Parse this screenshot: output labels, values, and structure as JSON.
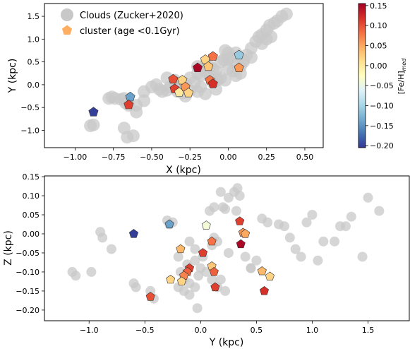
{
  "colors": {
    "cloud": "#c8c8c8",
    "colormap_stops": [
      "#313695",
      "#4575b4",
      "#74add1",
      "#abd9e9",
      "#e0f3f8",
      "#ffffbf",
      "#fee090",
      "#fdae61",
      "#f46d43",
      "#d73027",
      "#a50026"
    ]
  },
  "chart_data": [
    {
      "type": "scatter",
      "xlabel": "X (kpc)",
      "ylabel": "Y (kpc)",
      "xlim": [
        -1.2,
        0.62
      ],
      "ylim": [
        -1.38,
        1.78
      ],
      "xticks": [
        -1.0,
        -0.75,
        -0.5,
        -0.25,
        0.0,
        0.25,
        0.5
      ],
      "xtick_labels": [
        "−1.00",
        "−0.75",
        "−0.50",
        "−0.25",
        "0.00",
        "0.25",
        "0.50"
      ],
      "yticks": [
        -1.0,
        -0.5,
        0.0,
        0.5,
        1.0,
        1.5
      ],
      "ytick_labels": [
        "−1.0",
        "−0.5",
        "0.0",
        "0.5",
        "1.0",
        "1.5"
      ],
      "legend": {
        "placement": "top-left",
        "entries": [
          "Clouds (Zucker+2020)",
          "cluster (age <0.1Gyr)"
        ]
      },
      "series": [
        {
          "name": "Clouds (Zucker+2020)",
          "marker": "circle",
          "points": [
            [
              -0.9,
              -0.9
            ],
            [
              -0.88,
              -0.88
            ],
            [
              -0.78,
              -0.3
            ],
            [
              -0.76,
              -0.27
            ],
            [
              -0.74,
              -0.3
            ],
            [
              -0.7,
              -0.32
            ],
            [
              -0.68,
              -0.3
            ],
            [
              -0.67,
              -0.4
            ],
            [
              -0.65,
              -0.45
            ],
            [
              -0.68,
              -0.95
            ],
            [
              -0.62,
              -1.12
            ],
            [
              -0.66,
              -1.15
            ],
            [
              -0.6,
              -0.45
            ],
            [
              -0.55,
              -0.15
            ],
            [
              -0.5,
              -0.05
            ],
            [
              -0.47,
              0.0
            ],
            [
              -0.45,
              -0.1
            ],
            [
              -0.43,
              -0.15
            ],
            [
              -0.4,
              -0.12
            ],
            [
              -0.38,
              -0.05
            ],
            [
              -0.35,
              0.05
            ],
            [
              -0.33,
              -0.15
            ],
            [
              -0.3,
              0.05
            ],
            [
              -0.28,
              0.02
            ],
            [
              -0.25,
              0.15
            ],
            [
              -0.22,
              0.05
            ],
            [
              -0.2,
              0.25
            ],
            [
              -0.18,
              0.2
            ],
            [
              -0.15,
              0.3
            ],
            [
              -0.12,
              0.2
            ],
            [
              -0.1,
              0.35
            ],
            [
              -0.08,
              0.3
            ],
            [
              -0.05,
              0.5
            ],
            [
              -0.03,
              0.55
            ],
            [
              0.0,
              0.55
            ],
            [
              0.02,
              0.6
            ],
            [
              0.0,
              0.7
            ],
            [
              -0.02,
              0.75
            ],
            [
              0.05,
              0.45
            ],
            [
              0.08,
              0.4
            ],
            [
              0.1,
              0.5
            ],
            [
              0.12,
              0.65
            ],
            [
              0.15,
              0.8
            ],
            [
              0.18,
              0.95
            ],
            [
              0.2,
              1.05
            ],
            [
              0.22,
              1.1
            ],
            [
              0.25,
              1.2
            ],
            [
              0.27,
              1.3
            ],
            [
              0.3,
              1.35
            ],
            [
              0.32,
              1.4
            ],
            [
              0.35,
              1.5
            ],
            [
              0.38,
              1.55
            ],
            [
              0.28,
              1.05
            ],
            [
              0.25,
              1.0
            ],
            [
              0.22,
              0.9
            ],
            [
              -0.05,
              0.15
            ],
            [
              -0.02,
              0.1
            ],
            [
              -0.1,
              0.05
            ],
            [
              -0.18,
              -0.05
            ],
            [
              -0.25,
              -0.12
            ],
            [
              -0.3,
              -0.18
            ],
            [
              -0.35,
              0.1
            ],
            [
              -0.4,
              0.15
            ],
            [
              0.05,
              0.2
            ],
            [
              0.08,
              0.25
            ],
            [
              0.03,
              0.3
            ],
            [
              -0.15,
              0.45
            ],
            [
              -0.2,
              0.4
            ],
            [
              -0.12,
              0.4
            ],
            [
              0.1,
              0.55
            ],
            [
              0.15,
              0.6
            ],
            [
              0.05,
              0.7
            ],
            [
              0.0,
              0.35
            ],
            [
              -0.07,
              0.1
            ],
            [
              -0.28,
              -0.25
            ],
            [
              -0.2,
              -0.15
            ],
            [
              -0.15,
              -0.2
            ],
            [
              -0.08,
              -0.1
            ],
            [
              -0.6,
              -0.6
            ],
            [
              -0.55,
              -0.35
            ]
          ]
        },
        {
          "name": "cluster (age <0.1Gyr)",
          "marker": "pentagon",
          "points": [
            {
              "x": -0.88,
              "y": -0.6,
              "feh": -0.2
            },
            {
              "x": -0.64,
              "y": -0.27,
              "feh": -0.14
            },
            {
              "x": -0.65,
              "y": -0.44,
              "feh": 0.11
            },
            {
              "x": -0.36,
              "y": 0.12,
              "feh": 0.1
            },
            {
              "x": -0.35,
              "y": -0.09,
              "feh": 0.11
            },
            {
              "x": -0.3,
              "y": 0.1,
              "feh": 0.02
            },
            {
              "x": -0.32,
              "y": -0.17,
              "feh": 0.0
            },
            {
              "x": -0.28,
              "y": -0.05,
              "feh": 0.06
            },
            {
              "x": -0.26,
              "y": -0.18,
              "feh": 0.02
            },
            {
              "x": -0.2,
              "y": 0.37,
              "feh": 0.15
            },
            {
              "x": -0.15,
              "y": 0.55,
              "feh": 0.02
            },
            {
              "x": -0.13,
              "y": 0.4,
              "feh": 0.03
            },
            {
              "x": -0.12,
              "y": 0.1,
              "feh": 0.08
            },
            {
              "x": -0.1,
              "y": 0.02,
              "feh": 0.12
            },
            {
              "x": -0.1,
              "y": 0.62,
              "feh": 0.08
            },
            {
              "x": 0.07,
              "y": 0.65,
              "feh": -0.11
            },
            {
              "x": 0.07,
              "y": 0.37,
              "feh": 0.06
            }
          ]
        }
      ]
    },
    {
      "type": "scatter",
      "xlabel": "Y (kpc)",
      "ylabel": "Z (kpc)",
      "xlim": [
        -1.4,
        1.87
      ],
      "ylim": [
        -0.228,
        0.152
      ],
      "xticks": [
        -1.0,
        -0.5,
        0.0,
        0.5,
        1.0,
        1.5
      ],
      "xtick_labels": [
        "−1.0",
        "−0.5",
        "0.0",
        "0.5",
        "1.0",
        "1.5"
      ],
      "yticks": [
        -0.2,
        -0.15,
        -0.1,
        -0.05,
        0.0,
        0.05,
        0.1,
        0.15
      ],
      "ytick_labels": [
        "−0.20",
        "−0.15",
        "−0.10",
        "−0.05",
        "0.00",
        "0.05",
        "0.10",
        "0.15"
      ],
      "series": [
        {
          "name": "Clouds (Zucker+2020)",
          "marker": "circle",
          "points": [
            [
              -1.15,
              -0.1
            ],
            [
              -1.12,
              -0.11
            ],
            [
              -0.98,
              -0.1
            ],
            [
              -0.9,
              0.005
            ],
            [
              -0.88,
              -0.01
            ],
            [
              -0.8,
              -0.04
            ],
            [
              -0.6,
              -0.13
            ],
            [
              -0.58,
              -0.14
            ],
            [
              -0.45,
              -0.15
            ],
            [
              -0.42,
              -0.17
            ],
            [
              -0.3,
              0.035
            ],
            [
              -0.28,
              0.025
            ],
            [
              -0.25,
              0.03
            ],
            [
              -0.2,
              -0.14
            ],
            [
              -0.18,
              -0.1
            ],
            [
              -0.15,
              -0.12
            ],
            [
              -0.12,
              -0.08
            ],
            [
              -0.1,
              -0.13
            ],
            [
              -0.15,
              -0.15
            ],
            [
              -0.1,
              -0.16
            ],
            [
              -0.05,
              -0.14
            ],
            [
              -0.02,
              -0.11
            ],
            [
              0.0,
              -0.09
            ],
            [
              0.02,
              -0.06
            ],
            [
              0.05,
              -0.1
            ],
            [
              -0.05,
              -0.07
            ],
            [
              0.1,
              -0.03
            ],
            [
              0.12,
              -0.01
            ],
            [
              0.15,
              -0.02
            ],
            [
              0.08,
              0.06
            ],
            [
              0.12,
              0.07
            ],
            [
              0.18,
              0.11
            ],
            [
              0.2,
              0.07
            ],
            [
              0.25,
              0.095
            ],
            [
              0.3,
              0.11
            ],
            [
              0.33,
              0.12
            ],
            [
              0.35,
              0.1
            ],
            [
              0.32,
              0.06
            ],
            [
              0.22,
              0.065
            ],
            [
              0.18,
              -0.12
            ],
            [
              0.15,
              -0.14
            ],
            [
              0.22,
              -0.15
            ],
            [
              -0.1,
              -0.02
            ],
            [
              -0.05,
              -0.04
            ],
            [
              0.1,
              -0.12
            ],
            [
              0.4,
              -0.06
            ],
            [
              0.45,
              -0.09
            ],
            [
              0.5,
              -0.07
            ],
            [
              0.55,
              0.04
            ],
            [
              0.6,
              0.03
            ],
            [
              0.7,
              0.025
            ],
            [
              0.75,
              0.02
            ],
            [
              0.8,
              -0.01
            ],
            [
              0.85,
              -0.04
            ],
            [
              0.9,
              -0.06
            ],
            [
              0.95,
              0.03
            ],
            [
              1.0,
              0.05
            ],
            [
              1.05,
              -0.07
            ],
            [
              1.1,
              -0.02
            ],
            [
              1.2,
              -0.02
            ],
            [
              1.25,
              0.02
            ],
            [
              1.3,
              0.02
            ],
            [
              1.35,
              0.045
            ],
            [
              1.45,
              -0.06
            ],
            [
              1.5,
              0.095
            ],
            [
              1.6,
              0.06
            ],
            [
              -0.03,
              -0.195
            ],
            [
              -0.2,
              -0.06
            ],
            [
              0.25,
              -0.05
            ],
            [
              0.45,
              -0.09
            ]
          ]
        },
        {
          "name": "cluster (age <0.1Gyr)",
          "marker": "pentagon",
          "points": [
            {
              "x": -0.6,
              "y": 0.0,
              "feh": -0.2
            },
            {
              "x": -0.28,
              "y": 0.025,
              "feh": -0.14
            },
            {
              "x": 0.05,
              "y": 0.022,
              "feh": -0.04
            },
            {
              "x": -0.18,
              "y": -0.04,
              "feh": 0.04
            },
            {
              "x": -0.27,
              "y": -0.12,
              "feh": 0.02
            },
            {
              "x": -0.1,
              "y": -0.09,
              "feh": 0.11
            },
            {
              "x": -0.12,
              "y": -0.1,
              "feh": 0.09
            },
            {
              "x": -0.15,
              "y": -0.11,
              "feh": 0.07
            },
            {
              "x": -0.17,
              "y": -0.125,
              "feh": 0.02
            },
            {
              "x": -0.45,
              "y": -0.165,
              "feh": 0.1
            },
            {
              "x": 0.02,
              "y": -0.05,
              "feh": 0.11
            },
            {
              "x": 0.1,
              "y": -0.02,
              "feh": 0.08
            },
            {
              "x": 0.1,
              "y": -0.085,
              "feh": 0.03
            },
            {
              "x": 0.12,
              "y": -0.1,
              "feh": 0.09
            },
            {
              "x": 0.13,
              "y": -0.14,
              "feh": 0.11
            },
            {
              "x": 0.35,
              "y": 0.033,
              "feh": 0.11
            },
            {
              "x": 0.38,
              "y": 0.003,
              "feh": 0.06
            },
            {
              "x": 0.4,
              "y": 0.0,
              "feh": 0.05
            },
            {
              "x": 0.36,
              "y": -0.027,
              "feh": 0.15
            },
            {
              "x": 0.55,
              "y": -0.098,
              "feh": 0.04
            },
            {
              "x": 0.62,
              "y": -0.112,
              "feh": 0.02
            },
            {
              "x": 0.57,
              "y": -0.15,
              "feh": 0.12
            }
          ]
        }
      ]
    }
  ],
  "colorbar": {
    "label": "[Fe/H]",
    "label_subscript": "med",
    "range": [
      -0.205,
      0.155
    ],
    "ticks": [
      0.15,
      0.1,
      0.05,
      0.0,
      -0.05,
      -0.1,
      -0.15,
      -0.2
    ],
    "tick_labels": [
      "0.15",
      "0.10",
      "0.05",
      "0.00",
      "−0.05",
      "−0.10",
      "−0.15",
      "−0.20"
    ]
  }
}
